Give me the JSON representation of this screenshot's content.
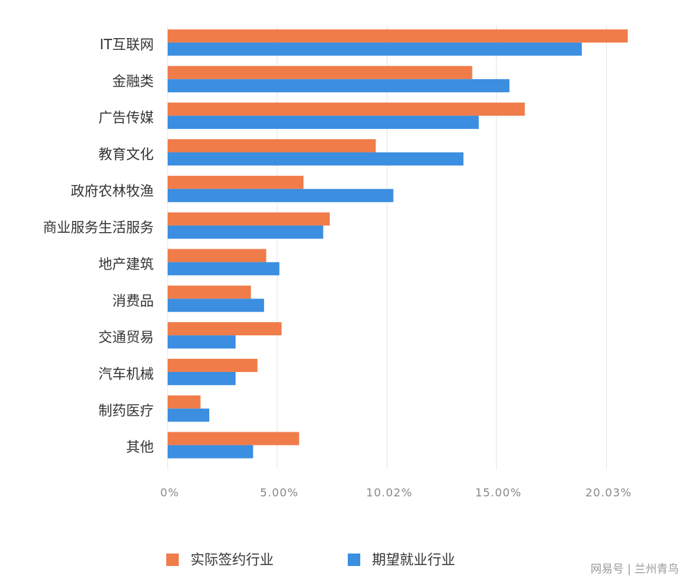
{
  "chart_data": {
    "type": "bar",
    "orientation": "horizontal",
    "categories": [
      "IT互联网",
      "金融类",
      "广告传媒",
      "教育文化",
      "政府农林牧渔",
      "商业服务生活服务",
      "地产建筑",
      "消费品",
      "交通贸易",
      "汽车机械",
      "制药医疗",
      "其他"
    ],
    "series": [
      {
        "name": "实际签约行业",
        "color": "#f07c4a",
        "values": [
          21.0,
          13.9,
          16.3,
          9.5,
          6.2,
          7.4,
          4.5,
          3.8,
          5.2,
          4.1,
          1.5,
          6.0
        ]
      },
      {
        "name": "期望就业行业",
        "color": "#3b8ee0",
        "values": [
          18.9,
          15.6,
          14.2,
          13.5,
          10.3,
          7.1,
          5.1,
          4.4,
          3.1,
          3.1,
          1.9,
          3.9
        ]
      }
    ],
    "xlim": [
      0,
      21.5
    ],
    "xticks": [
      {
        "value": 0,
        "label": "0%"
      },
      {
        "value": 5,
        "label": "5.00%"
      },
      {
        "value": 10.02,
        "label": "10.02%"
      },
      {
        "value": 15,
        "label": "15.00%"
      },
      {
        "value": 20.03,
        "label": "20.03%"
      }
    ],
    "grid": true,
    "legend": "bottom",
    "watermark": "网易号 | 兰州青鸟"
  }
}
